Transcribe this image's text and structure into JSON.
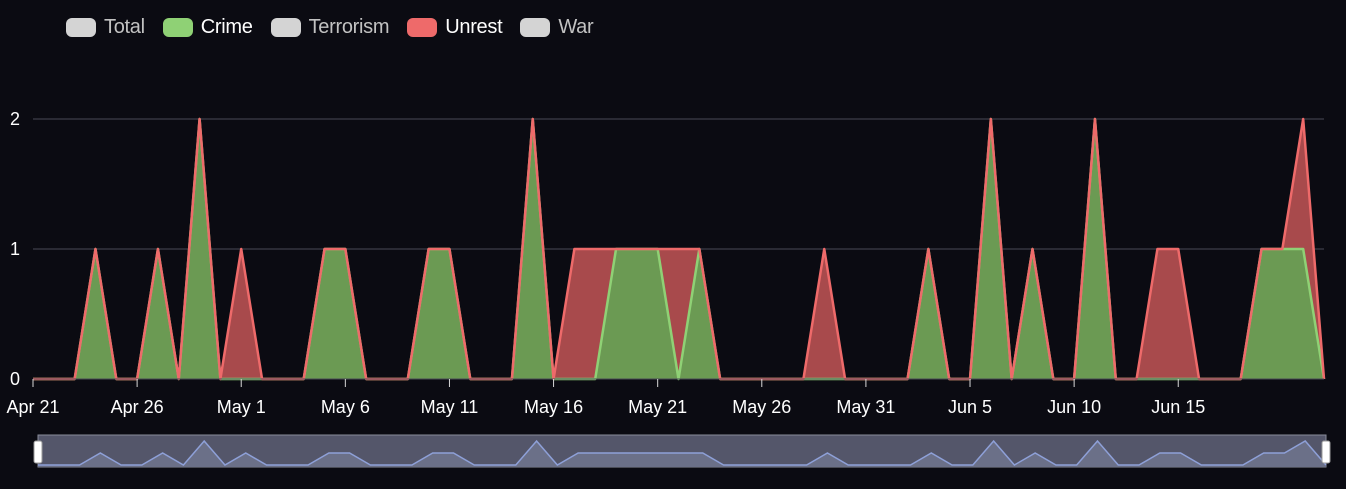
{
  "legend": [
    {
      "label": "Total",
      "color": "#d4d4d4",
      "active": false
    },
    {
      "label": "Crime",
      "color": "#8fd175",
      "active": true
    },
    {
      "label": "Terrorism",
      "color": "#d4d4d4",
      "active": false
    },
    {
      "label": "Unrest",
      "color": "#ee6a6a",
      "active": true
    },
    {
      "label": "War",
      "color": "#d4d4d4",
      "active": false
    }
  ],
  "colors": {
    "background": "#0b0b12",
    "grid": "#4a4a55",
    "crime_fill": "#6b9a53",
    "crime_line": "#8fd175",
    "unrest_fill": "#a84a4c",
    "unrest_line": "#ee6a6a",
    "navigator_fill": "#54566a",
    "navigator_line": "#8ea0d8"
  },
  "chart_data": {
    "type": "area",
    "stacked": true,
    "x_start": "Apr 21",
    "x_end": "Jun 19",
    "x_ticks": [
      "Apr 21",
      "Apr 26",
      "May 1",
      "May 6",
      "May 11",
      "May 16",
      "May 21",
      "May 26",
      "May 31",
      "Jun 5",
      "Jun 10",
      "Jun 15"
    ],
    "y_ticks": [
      0,
      1,
      2
    ],
    "ylim": [
      0,
      2
    ],
    "grid": true,
    "legend_position": "top-left",
    "series": [
      {
        "name": "Crime",
        "values": [
          0,
          0,
          0,
          1,
          0,
          0,
          1,
          0,
          2,
          0,
          0,
          0,
          0,
          0,
          1,
          1,
          0,
          0,
          0,
          1,
          1,
          0,
          0,
          0,
          2,
          0,
          0,
          0,
          1,
          1,
          1,
          0,
          1,
          0,
          0,
          0,
          0,
          0,
          0,
          0,
          0,
          0,
          0,
          1,
          0,
          0,
          2,
          0,
          1,
          0,
          0,
          2,
          0,
          0,
          0,
          0,
          0,
          0,
          0,
          1,
          1,
          1,
          0
        ]
      },
      {
        "name": "Unrest",
        "values": [
          0,
          0,
          0,
          0,
          0,
          0,
          0,
          0,
          0,
          0,
          1,
          0,
          0,
          0,
          0,
          0,
          0,
          0,
          0,
          0,
          0,
          0,
          0,
          0,
          0,
          0,
          1,
          1,
          0,
          0,
          0,
          1,
          0,
          0,
          0,
          0,
          0,
          0,
          1,
          0,
          0,
          0,
          0,
          0,
          0,
          0,
          0,
          0,
          0,
          0,
          0,
          0,
          0,
          0,
          1,
          1,
          0,
          0,
          0,
          0,
          0,
          1,
          0
        ]
      }
    ],
    "navigator_values": [
      0,
      0,
      0,
      1,
      0,
      0,
      1,
      0,
      2,
      0,
      1,
      0,
      0,
      0,
      1,
      1,
      0,
      0,
      0,
      1,
      1,
      0,
      0,
      0,
      2,
      0,
      1,
      1,
      1,
      1,
      1,
      1,
      1,
      0,
      0,
      0,
      0,
      0,
      1,
      0,
      0,
      0,
      0,
      1,
      0,
      0,
      2,
      0,
      1,
      0,
      0,
      2,
      0,
      0,
      1,
      1,
      0,
      0,
      0,
      1,
      1,
      2,
      0
    ]
  }
}
